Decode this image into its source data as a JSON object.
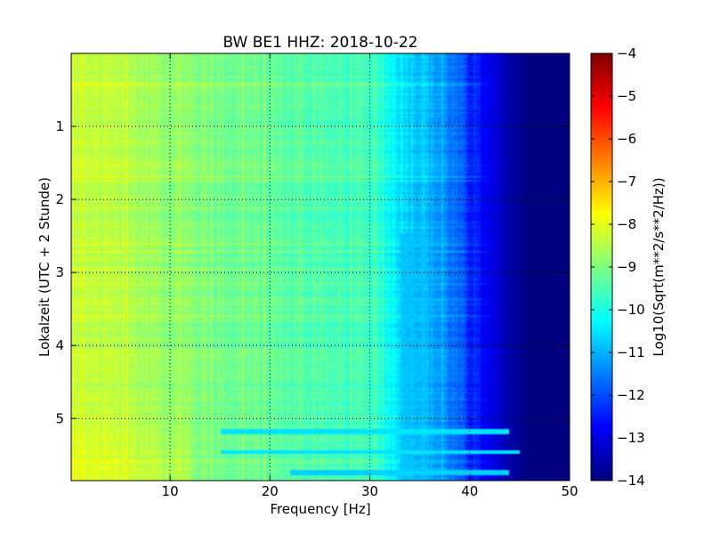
{
  "chart_data": {
    "type": "heatmap",
    "title": "BW BE1 HHZ: 2018-10-22",
    "xlabel": "Frequency [Hz]",
    "ylabel": "Lokalzeit (UTC + 2 Stunde)",
    "xlim": [
      0.1,
      50
    ],
    "ylim": [
      5.85,
      0.0
    ],
    "x_ticks": [
      10,
      20,
      30,
      40,
      50
    ],
    "x_tick_labels": [
      "10",
      "20",
      "30",
      "40",
      "50"
    ],
    "y_ticks": [
      1,
      2,
      3,
      4,
      5
    ],
    "y_tick_labels": [
      "1",
      "2",
      "3",
      "4",
      "5"
    ],
    "grid": true,
    "colormap": "jet",
    "colorbar": {
      "label": "Log10(Sqrt(m**2/s**2/Hz))",
      "range": [
        -14,
        -4
      ],
      "ticks": [
        -4,
        -5,
        -6,
        -7,
        -8,
        -9,
        -10,
        -11,
        -12,
        -13,
        -14
      ],
      "tick_labels": [
        "−4",
        "−5",
        "−6",
        "−7",
        "−8",
        "−9",
        "−10",
        "−11",
        "−12",
        "−13",
        "−14"
      ]
    },
    "spectrum_profile": {
      "frequency_hz": [
        0,
        5,
        10,
        15,
        20,
        25,
        30,
        32,
        34,
        36,
        38,
        40,
        42,
        44,
        46,
        50
      ],
      "log10_amplitude": [
        -8.3,
        -8.5,
        -8.8,
        -9.1,
        -9.3,
        -9.5,
        -9.7,
        -10.2,
        -10.6,
        -11.0,
        -11.5,
        -12.3,
        -13.0,
        -13.6,
        -14.0,
        -14.0
      ]
    },
    "horizontal_stripes": [
      {
        "time": 5.18,
        "from_hz": 15,
        "to_hz": 44,
        "log10_amplitude": -10.5
      },
      {
        "time": 5.47,
        "from_hz": 15,
        "to_hz": 45,
        "log10_amplitude": -10.5
      },
      {
        "time": 5.74,
        "from_hz": 22,
        "to_hz": 44,
        "log10_amplitude": -10.7
      }
    ],
    "notch_region": {
      "time_from": 2.45,
      "time_to": 5.85,
      "from_hz": 33,
      "to_hz": 37,
      "log10_amplitude": -10.8
    }
  }
}
